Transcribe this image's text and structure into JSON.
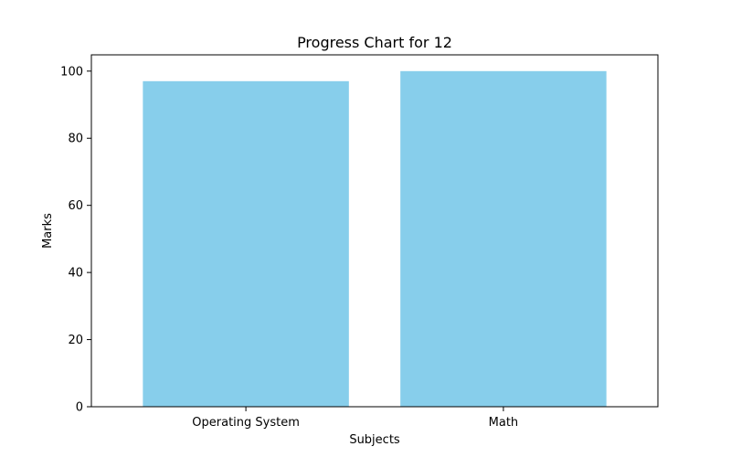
{
  "chart_data": {
    "type": "bar",
    "title": "Progress Chart for 12",
    "xlabel": "Subjects",
    "ylabel": "Marks",
    "categories": [
      "Operating System",
      "Math"
    ],
    "values": [
      97,
      100
    ],
    "ylim": [
      0,
      104.85
    ],
    "yticks": [
      0,
      20,
      40,
      60,
      80,
      100
    ],
    "bar_color": "#87CEEB",
    "grid": false,
    "legend": "none"
  }
}
